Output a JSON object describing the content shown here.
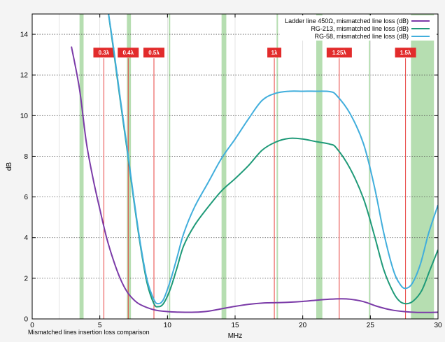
{
  "chart_data": {
    "type": "line",
    "title": "",
    "xlabel": "MHz",
    "ylabel": "dB",
    "caption": "Mismatched lines insertion loss comparison",
    "xlim": [
      0,
      30
    ],
    "ylim": [
      0,
      15
    ],
    "xticks": [
      0,
      5,
      10,
      15,
      20,
      25,
      30
    ],
    "yticks": [
      0,
      2,
      4,
      6,
      8,
      10,
      12,
      14
    ],
    "grid": "horizontal dotted",
    "legend_position": "top-right",
    "series": [
      {
        "name": "Ladder line 450Ω, mismatched line loss (dB)",
        "color": "#7b3ba8",
        "points": [
          [
            2.9,
            13.4
          ],
          [
            3.5,
            11.3
          ],
          [
            4.0,
            8.7
          ],
          [
            4.5,
            6.9
          ],
          [
            5.0,
            5.4
          ],
          [
            5.5,
            4.0
          ],
          [
            6.0,
            2.9
          ],
          [
            6.5,
            2.0
          ],
          [
            7.0,
            1.35
          ],
          [
            7.5,
            0.95
          ],
          [
            8.0,
            0.7
          ],
          [
            9.0,
            0.45
          ],
          [
            10.0,
            0.36
          ],
          [
            11.0,
            0.33
          ],
          [
            12.0,
            0.33
          ],
          [
            13.0,
            0.38
          ],
          [
            14.0,
            0.5
          ],
          [
            15.0,
            0.62
          ],
          [
            16.0,
            0.72
          ],
          [
            17.0,
            0.78
          ],
          [
            18.0,
            0.8
          ],
          [
            19.0,
            0.82
          ],
          [
            20.0,
            0.86
          ],
          [
            21.0,
            0.92
          ],
          [
            22.0,
            0.97
          ],
          [
            22.8,
            0.99
          ],
          [
            23.5,
            0.97
          ],
          [
            24.5,
            0.85
          ],
          [
            25.5,
            0.62
          ],
          [
            26.5,
            0.45
          ],
          [
            27.5,
            0.36
          ],
          [
            28.5,
            0.32
          ],
          [
            29.5,
            0.32
          ],
          [
            30.0,
            0.33
          ]
        ]
      },
      {
        "name": "RG-213, mismatched line loss (dB)",
        "color": "#1f9a78",
        "points": [
          [
            5.6,
            15.2
          ],
          [
            6.0,
            13.3
          ],
          [
            6.5,
            10.8
          ],
          [
            7.0,
            8.4
          ],
          [
            7.5,
            5.9
          ],
          [
            8.0,
            3.6
          ],
          [
            8.5,
            1.75
          ],
          [
            9.0,
            0.75
          ],
          [
            9.3,
            0.6
          ],
          [
            9.7,
            0.75
          ],
          [
            10.2,
            1.45
          ],
          [
            10.7,
            2.5
          ],
          [
            11.2,
            3.6
          ],
          [
            12.0,
            4.6
          ],
          [
            13.0,
            5.5
          ],
          [
            14.0,
            6.3
          ],
          [
            15.0,
            6.9
          ],
          [
            16.0,
            7.55
          ],
          [
            17.0,
            8.3
          ],
          [
            18.0,
            8.7
          ],
          [
            19.0,
            8.88
          ],
          [
            20.0,
            8.85
          ],
          [
            21.0,
            8.72
          ],
          [
            22.0,
            8.6
          ],
          [
            22.5,
            8.4
          ],
          [
            23.5,
            7.4
          ],
          [
            24.5,
            5.9
          ],
          [
            25.3,
            4.1
          ],
          [
            26.0,
            2.4
          ],
          [
            26.7,
            1.3
          ],
          [
            27.2,
            0.85
          ],
          [
            27.7,
            0.75
          ],
          [
            28.2,
            0.9
          ],
          [
            28.8,
            1.4
          ],
          [
            29.4,
            2.4
          ],
          [
            30.0,
            3.4
          ]
        ]
      },
      {
        "name": "RG-58, mismatched line loss (dB)",
        "color": "#41aedc",
        "points": [
          [
            5.6,
            15.2
          ],
          [
            6.0,
            13.4
          ],
          [
            6.5,
            10.9
          ],
          [
            7.0,
            8.5
          ],
          [
            7.5,
            6.0
          ],
          [
            8.0,
            3.7
          ],
          [
            8.5,
            1.9
          ],
          [
            9.0,
            0.95
          ],
          [
            9.3,
            0.75
          ],
          [
            9.7,
            0.95
          ],
          [
            10.2,
            1.85
          ],
          [
            10.7,
            3.0
          ],
          [
            11.2,
            4.2
          ],
          [
            12.0,
            5.5
          ],
          [
            13.0,
            6.7
          ],
          [
            14.0,
            7.9
          ],
          [
            15.0,
            8.85
          ],
          [
            16.0,
            9.85
          ],
          [
            17.0,
            10.75
          ],
          [
            18.0,
            11.1
          ],
          [
            19.0,
            11.2
          ],
          [
            20.0,
            11.2
          ],
          [
            21.0,
            11.2
          ],
          [
            22.0,
            11.18
          ],
          [
            22.5,
            11.0
          ],
          [
            23.5,
            10.1
          ],
          [
            24.5,
            8.6
          ],
          [
            25.3,
            6.5
          ],
          [
            26.0,
            4.2
          ],
          [
            26.7,
            2.4
          ],
          [
            27.2,
            1.7
          ],
          [
            27.6,
            1.5
          ],
          [
            28.1,
            1.75
          ],
          [
            28.7,
            2.7
          ],
          [
            29.3,
            4.2
          ],
          [
            30.0,
            5.6
          ]
        ]
      }
    ],
    "green_bands": [
      [
        3.5,
        3.8
      ],
      [
        7.0,
        7.3
      ],
      [
        10.1,
        10.15
      ],
      [
        14.0,
        14.35
      ],
      [
        18.068,
        18.168
      ],
      [
        21.0,
        21.45
      ],
      [
        24.89,
        24.99
      ],
      [
        28.0,
        29.7
      ]
    ],
    "wavelength_markers": [
      {
        "label": "0.3λ",
        "x": 5.3
      },
      {
        "label": "0.4λ",
        "x": 7.1
      },
      {
        "label": "0.5λ",
        "x": 9.0
      },
      {
        "label": "1λ",
        "x": 17.9
      },
      {
        "label": "1.25λ",
        "x": 22.7
      },
      {
        "label": "1.5λ",
        "x": 27.6
      }
    ],
    "marker_label_y": 13.1
  }
}
